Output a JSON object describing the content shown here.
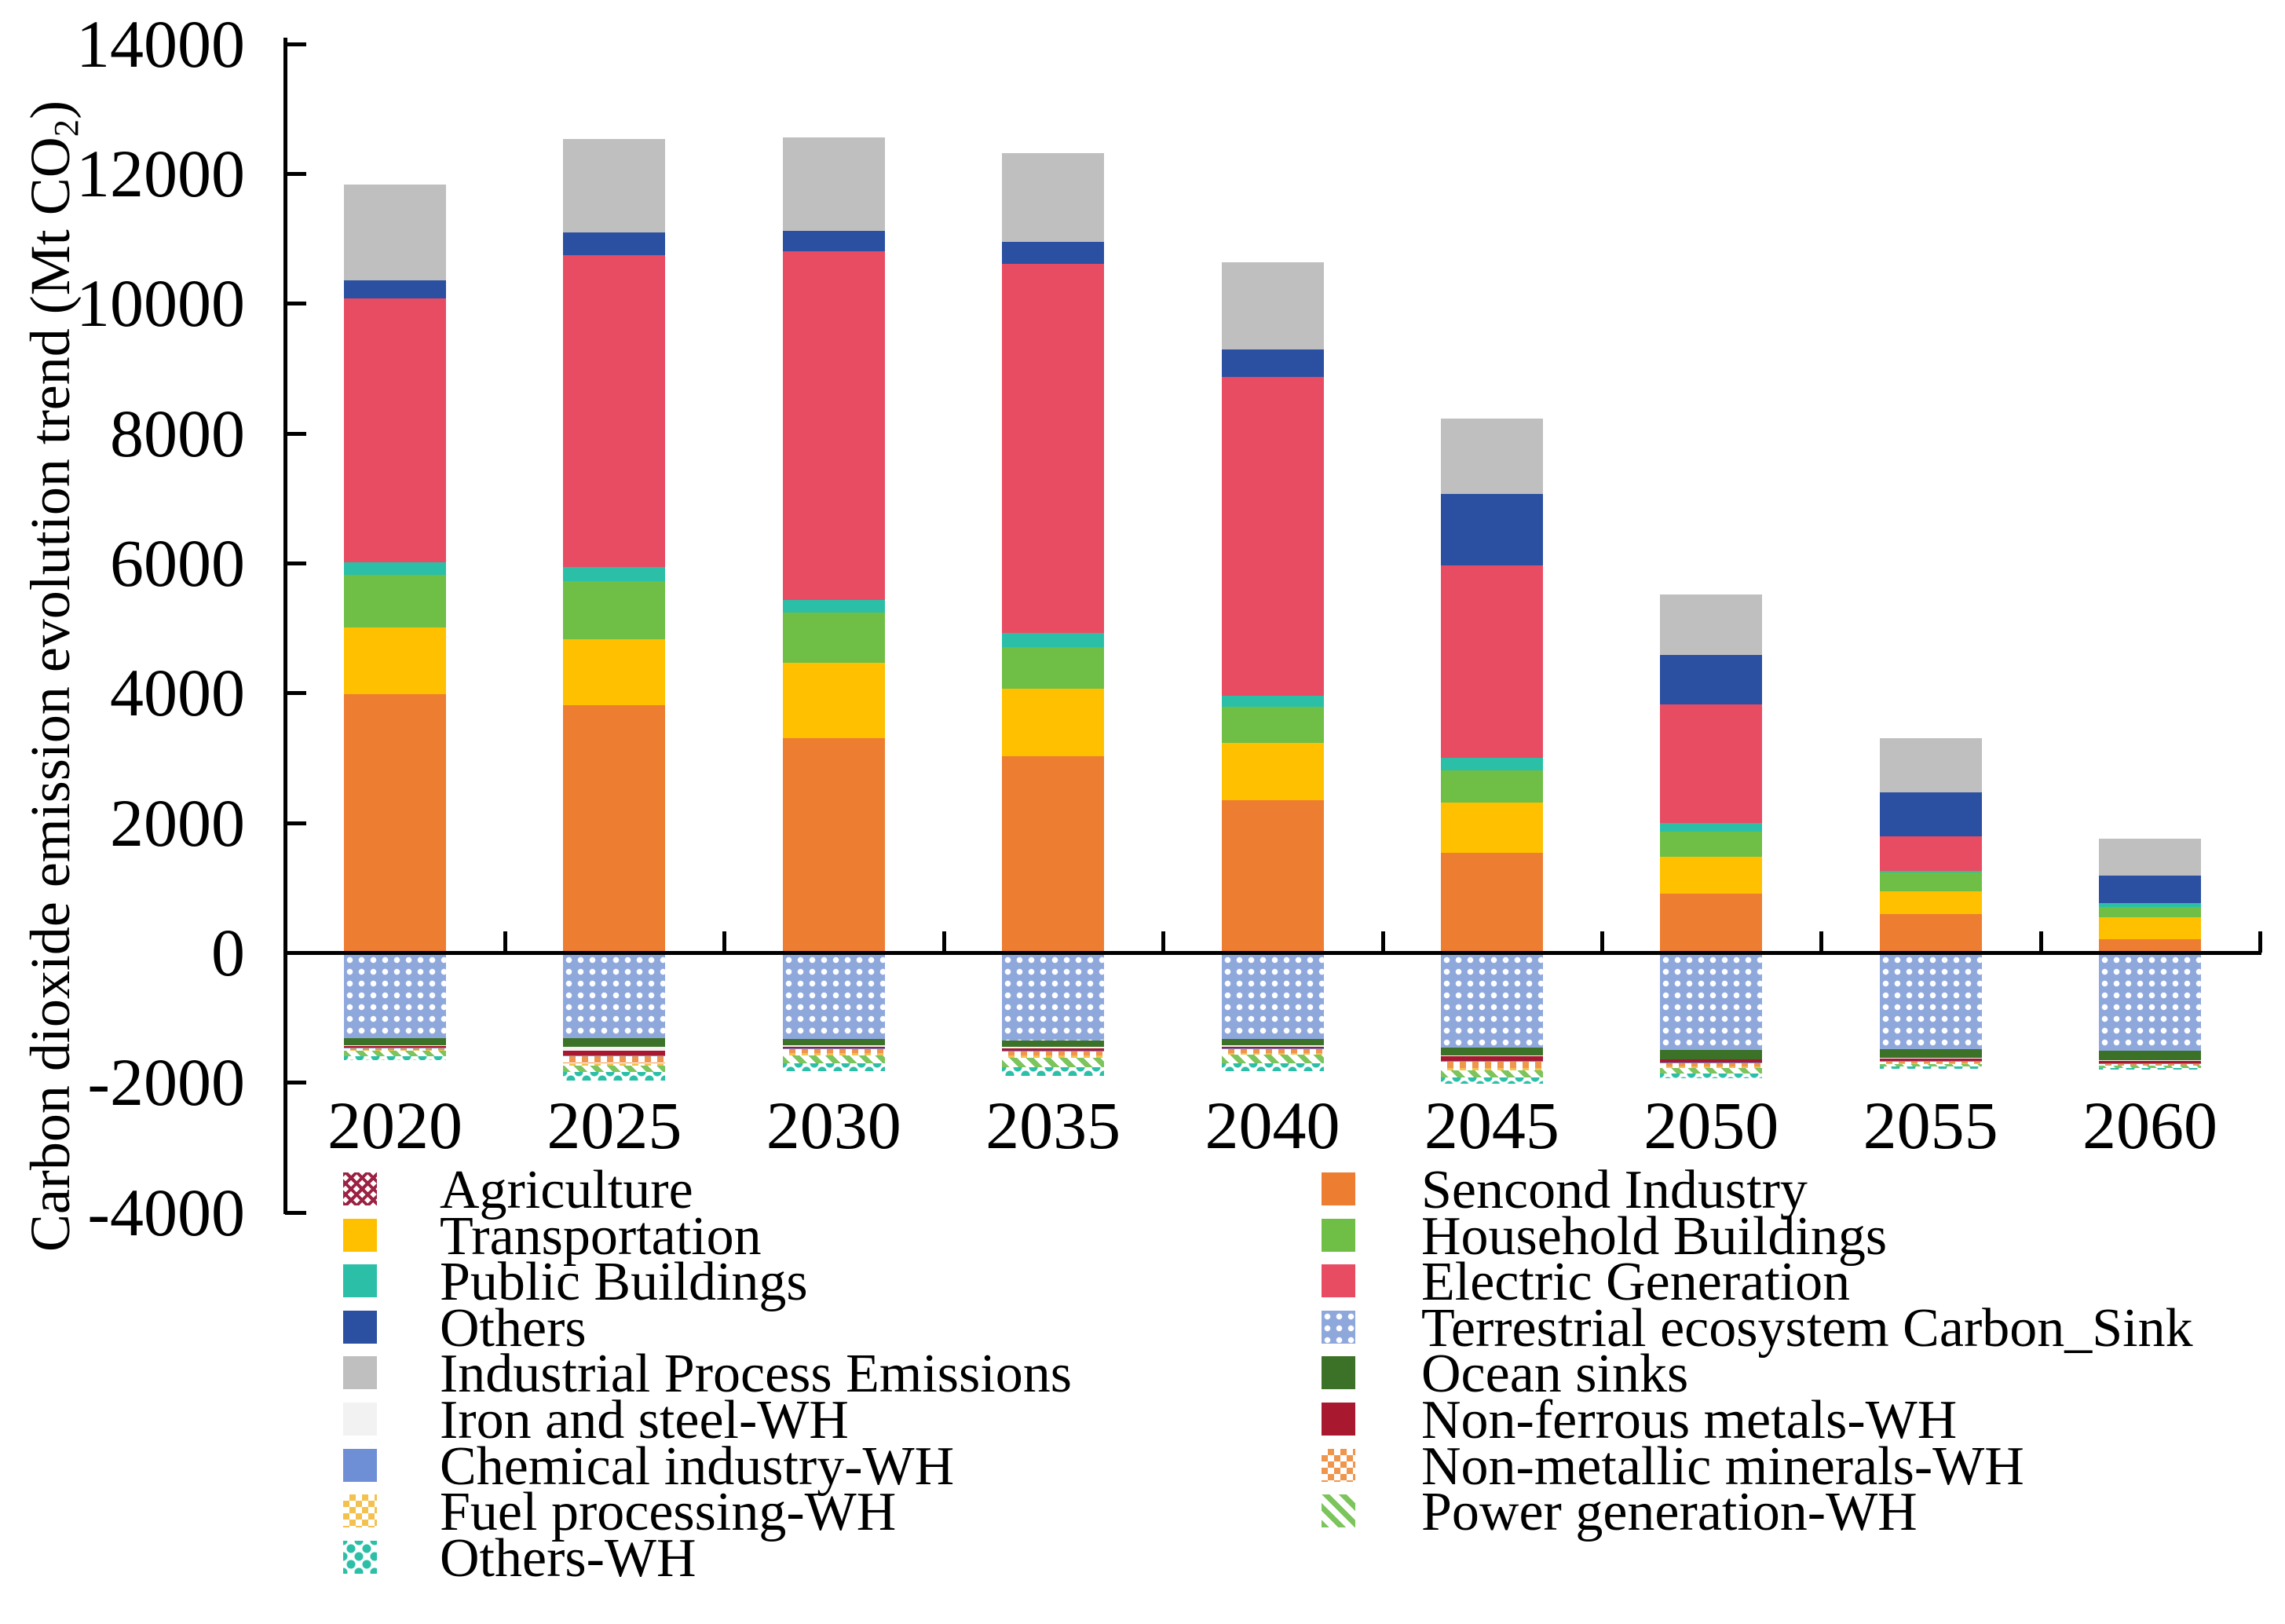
{
  "chart_data": {
    "type": "bar",
    "stacked": true,
    "title": "",
    "ylabel_parts": {
      "main": "Carbon dioxide emission evolution trend (Mt CO",
      "sub": "2",
      "end": ")"
    },
    "categories": [
      "2020",
      "2025",
      "2030",
      "2035",
      "2040",
      "2045",
      "2050",
      "2055",
      "2060"
    ],
    "ylim": [
      -4000,
      14000
    ],
    "ytick_step": 2000,
    "ytick_labels": [
      "-4000",
      "-2000",
      "0",
      "2000",
      "4000",
      "6000",
      "8000",
      "10000",
      "12000",
      "14000"
    ],
    "grid": false,
    "legend_position": "bottom-two-columns",
    "series": [
      {
        "id": "agriculture",
        "name": "Agriculture",
        "color": "#9B2242",
        "pattern": "crosshatch",
        "stack": "positive",
        "values": [
          0,
          0,
          0,
          0,
          0,
          0,
          0,
          0,
          0
        ]
      },
      {
        "id": "second_industry",
        "name": "Sencond Industry",
        "color": "#ED7D31",
        "pattern": "solid",
        "stack": "positive",
        "values": [
          3980,
          3810,
          3300,
          3020,
          2350,
          1540,
          910,
          590,
          200
        ]
      },
      {
        "id": "transportation",
        "name": "Transportation",
        "color": "#FFC000",
        "pattern": "solid",
        "stack": "positive",
        "values": [
          1030,
          1020,
          1160,
          1040,
          880,
          770,
          560,
          350,
          340
        ]
      },
      {
        "id": "household_buildings",
        "name": "Household Buildings",
        "color": "#6FBE45",
        "pattern": "solid",
        "stack": "positive",
        "values": [
          810,
          890,
          780,
          650,
          560,
          500,
          390,
          290,
          160
        ]
      },
      {
        "id": "public_buildings",
        "name": "Public Buildings",
        "color": "#2BBFA8",
        "pattern": "solid",
        "stack": "positive",
        "values": [
          190,
          220,
          190,
          210,
          160,
          190,
          140,
          30,
          60
        ]
      },
      {
        "id": "electric_generation",
        "name": "Electric Generation",
        "color": "#E84C63",
        "pattern": "solid",
        "stack": "positive",
        "values": [
          4070,
          4800,
          5370,
          5690,
          4920,
          2960,
          1820,
          530,
          0
        ]
      },
      {
        "id": "others",
        "name": "Others",
        "color": "#2B50A1",
        "pattern": "solid",
        "stack": "positive",
        "values": [
          270,
          350,
          320,
          340,
          420,
          1110,
          770,
          680,
          420
        ]
      },
      {
        "id": "industrial_process",
        "name": "Industrial Process Emissions",
        "color": "#BFBFBF",
        "pattern": "solid",
        "stack": "positive",
        "values": [
          1480,
          1440,
          1440,
          1370,
          1340,
          1160,
          930,
          830,
          580
        ]
      },
      {
        "id": "terrestrial_sink",
        "name": "Terrestrial ecosystem Carbon_Sink",
        "color": "#8FA8DC",
        "pattern": "dots-grid",
        "stack": "negative",
        "values": [
          1300,
          1290,
          1310,
          1330,
          1310,
          1435,
          1480,
          1465,
          1490
        ]
      },
      {
        "id": "ocean_sinks",
        "name": "Ocean sinks",
        "color": "#3C7227",
        "pattern": "solid",
        "stack": "negative",
        "values": [
          105,
          135,
          92,
          95,
          90,
          120,
          135,
          130,
          140
        ]
      },
      {
        "id": "iron_steel_wh",
        "name": "Iron and steel-WH",
        "color": "#F2F2F2",
        "pattern": "solid",
        "stack": "negative",
        "values": [
          12,
          60,
          25,
          25,
          25,
          12,
          10,
          10,
          10
        ]
      },
      {
        "id": "nonferrous_wh",
        "name": "Non-ferrous metals-WH",
        "color": "#A8182F",
        "pattern": "solid",
        "stack": "negative",
        "values": [
          28,
          78,
          30,
          35,
          32,
          80,
          45,
          40,
          47
        ]
      },
      {
        "id": "chemical_wh",
        "name": "Chemical industry-WH",
        "color": "#6E8FD6",
        "pattern": "solid",
        "stack": "negative",
        "values": [
          8,
          10,
          10,
          10,
          10,
          10,
          8,
          8,
          8
        ]
      },
      {
        "id": "nonmetallic_wh",
        "name": "Non-metallic minerals-WH",
        "color": "#F0954C",
        "pattern": "checker",
        "stack": "negative",
        "values": [
          25,
          105,
          60,
          65,
          55,
          100,
          50,
          30,
          18
        ]
      },
      {
        "id": "fuel_wh",
        "name": "Fuel processing-WH",
        "color": "#F2C14E",
        "pattern": "checker",
        "stack": "negative",
        "values": [
          15,
          40,
          35,
          35,
          30,
          35,
          30,
          15,
          10
        ]
      },
      {
        "id": "power_wh",
        "name": "Power generation-WH",
        "color": "#7CC45C",
        "pattern": "stripes",
        "stack": "negative",
        "values": [
          85,
          95,
          125,
          150,
          128,
          105,
          75,
          35,
          25
        ]
      },
      {
        "id": "others_wh",
        "name": "Others-WH",
        "color": "#2BBFA8",
        "pattern": "dots-diag",
        "stack": "negative",
        "values": [
          60,
          130,
          120,
          135,
          120,
          100,
          75,
          30,
          25
        ]
      }
    ],
    "legend": {
      "left_column_ids": [
        "agriculture",
        "transportation",
        "public_buildings",
        "others",
        "industrial_process",
        "iron_steel_wh",
        "chemical_wh",
        "fuel_wh",
        "others_wh"
      ],
      "right_column_ids": [
        "second_industry",
        "household_buildings",
        "electric_generation",
        "terrestrial_sink",
        "ocean_sinks",
        "nonferrous_wh",
        "nonmetallic_wh",
        "power_wh"
      ]
    }
  }
}
